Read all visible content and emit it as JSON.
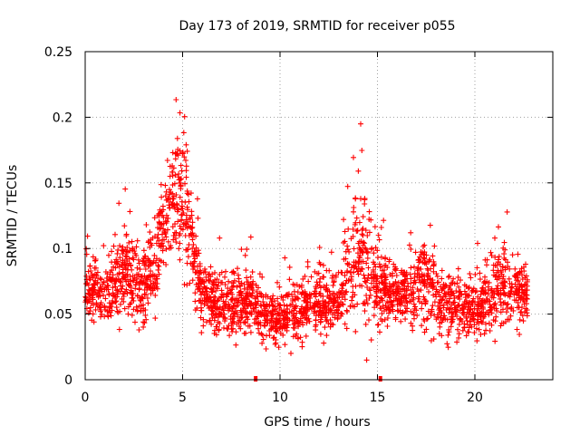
{
  "chart_data": {
    "type": "scatter",
    "title": "Day 173 of 2019, SRMTID for receiver p055",
    "xlabel": "GPS time / hours",
    "ylabel": "SRMTID / TECUs",
    "xlim": [
      0,
      24
    ],
    "ylim": [
      0,
      0.25
    ],
    "x_ticks": [
      0,
      5,
      10,
      15,
      20
    ],
    "x_tick_labels": [
      "0",
      "5",
      "10",
      "15",
      "20"
    ],
    "y_ticks": [
      0,
      0.05,
      0.1,
      0.15,
      0.2,
      0.25
    ],
    "y_tick_labels": [
      "0",
      "0.05",
      "0.1",
      "0.15",
      "0.2",
      "0.25"
    ],
    "grid": true,
    "marker": "plus",
    "color": "#ff0000",
    "data_end_hour": 22.7,
    "baseline_markers_x": [
      8.75,
      15.15
    ],
    "envelope_x": [
      0,
      0.5,
      1,
      1.5,
      2,
      2.5,
      3,
      3.5,
      4,
      4.4,
      4.8,
      5.2,
      5.6,
      6,
      6.5,
      7,
      7.5,
      8,
      8.5,
      9,
      9.5,
      10,
      10.5,
      11,
      11.5,
      12,
      12.5,
      13,
      13.5,
      14,
      14.5,
      15,
      15.5,
      16,
      16.5,
      17,
      17.5,
      18,
      18.5,
      19,
      19.5,
      20,
      20.5,
      21,
      21.5,
      22,
      22.7
    ],
    "envelope_center": [
      0.072,
      0.068,
      0.065,
      0.07,
      0.08,
      0.075,
      0.07,
      0.09,
      0.11,
      0.125,
      0.145,
      0.135,
      0.09,
      0.065,
      0.06,
      0.055,
      0.052,
      0.056,
      0.06,
      0.05,
      0.048,
      0.046,
      0.05,
      0.052,
      0.058,
      0.06,
      0.058,
      0.058,
      0.075,
      0.09,
      0.088,
      0.07,
      0.066,
      0.065,
      0.065,
      0.07,
      0.075,
      0.065,
      0.06,
      0.058,
      0.055,
      0.057,
      0.06,
      0.065,
      0.07,
      0.068,
      0.062
    ],
    "envelope_spread": [
      0.022,
      0.02,
      0.022,
      0.025,
      0.03,
      0.028,
      0.025,
      0.03,
      0.03,
      0.035,
      0.05,
      0.05,
      0.03,
      0.022,
      0.02,
      0.02,
      0.018,
      0.02,
      0.02,
      0.02,
      0.018,
      0.018,
      0.02,
      0.02,
      0.02,
      0.022,
      0.022,
      0.022,
      0.04,
      0.05,
      0.045,
      0.03,
      0.022,
      0.022,
      0.022,
      0.03,
      0.03,
      0.025,
      0.022,
      0.022,
      0.02,
      0.02,
      0.022,
      0.025,
      0.025,
      0.022,
      0.022
    ],
    "n_points": 2600
  }
}
